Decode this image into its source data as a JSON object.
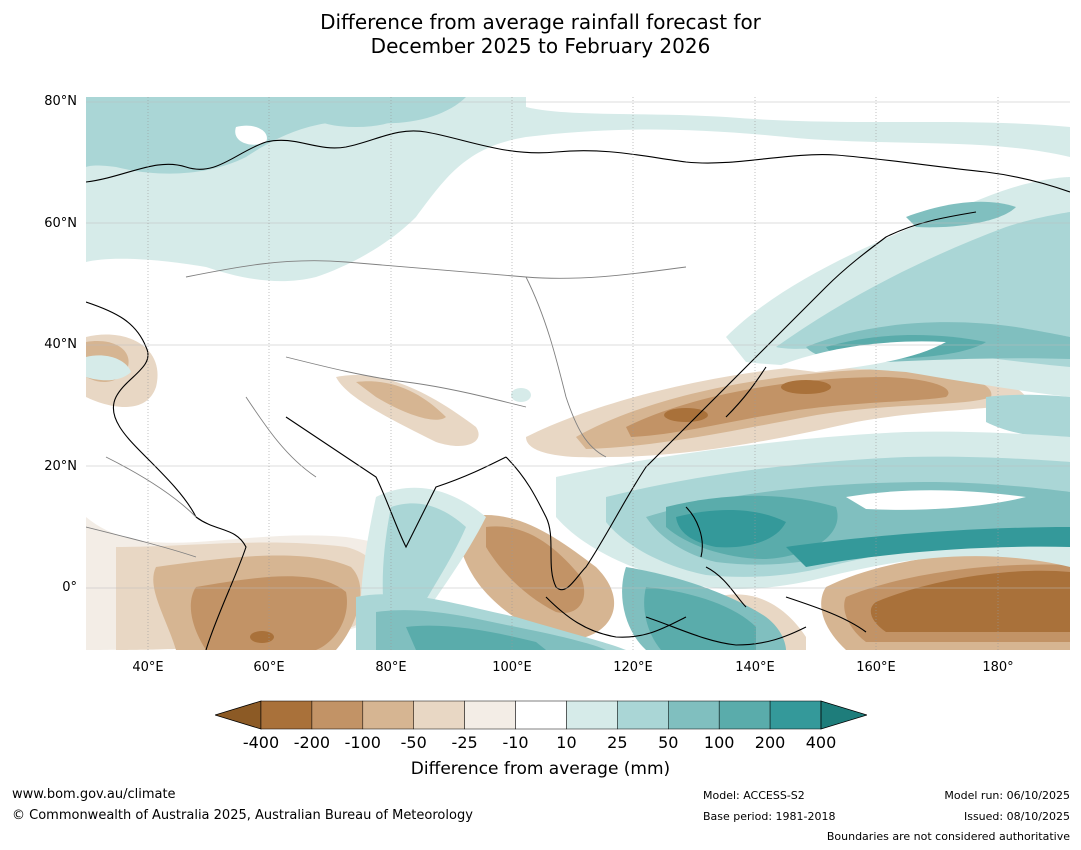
{
  "header": {
    "title_line1": "Difference from average rainfall forecast for",
    "title_line2": "December 2025 to February 2026"
  },
  "map": {
    "lat_labels": [
      "80°N",
      "60°N",
      "40°N",
      "20°N",
      "0°"
    ],
    "lon_labels": [
      "40°E",
      "60°E",
      "80°E",
      "100°E",
      "120°E",
      "140°E",
      "160°E",
      "180°"
    ],
    "land_fill": "#ffffff",
    "coast_color": "#000000",
    "border_color": "#808080"
  },
  "legend": {
    "title": "Difference from average (mm)",
    "tick_labels": [
      "-400",
      "-200",
      "-100",
      "-50",
      "-25",
      "-10",
      "10",
      "25",
      "50",
      "100",
      "200",
      "400"
    ],
    "colors": [
      "#8c5a25",
      "#a9713a",
      "#c29366",
      "#d6b592",
      "#e8d7c4",
      "#f3ede6",
      "#ffffff",
      "#d6ebe9",
      "#aad6d6",
      "#80bfbf",
      "#5aacab",
      "#34999a",
      "#1e7d7b"
    ]
  },
  "footer": {
    "website": "www.bom.gov.au/climate",
    "copyright": "© Commonwealth of Australia 2025, Australian Bureau of Meteorology",
    "model": "Model: ACCESS-S2",
    "base_period": "Base period: 1981-2018",
    "model_run": "Model run: 06/10/2025",
    "issued": "Issued: 08/10/2025",
    "disclaimer": "Boundaries are not considered authoritative"
  }
}
